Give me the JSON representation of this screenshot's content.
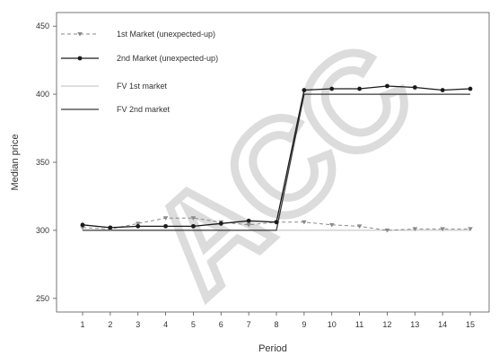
{
  "chart_data": {
    "type": "line",
    "title": "",
    "xlabel": "Period",
    "ylabel": "Median price",
    "ylim": [
      240,
      460
    ],
    "yticks": [
      250,
      300,
      350,
      400,
      450
    ],
    "categories": [
      "1",
      "2",
      "3",
      "4",
      "5",
      "6",
      "7",
      "8",
      "9",
      "10",
      "11",
      "12",
      "13",
      "14",
      "15"
    ],
    "grid": false,
    "legend_position": "top-left",
    "series": [
      {
        "name": "1st Market (unexpected-up)",
        "style": "dashed",
        "marker": "triangle-down",
        "color": "#8a8a8a",
        "values": [
          302,
          301,
          305,
          309,
          309,
          306,
          304,
          306,
          306,
          304,
          303,
          300,
          301,
          301,
          301
        ]
      },
      {
        "name": "2nd Market (unexpected-up)",
        "style": "solid",
        "marker": "circle",
        "color": "#1a1a1a",
        "values": [
          304,
          302,
          303,
          303,
          303,
          305,
          307,
          306,
          403,
          404,
          404,
          406,
          405,
          403,
          404
        ]
      },
      {
        "name": "FV 1st market",
        "style": "solid",
        "marker": "none",
        "color": "#bdbdbd",
        "values": [
          300,
          300,
          300,
          300,
          300,
          300,
          300,
          300,
          300,
          300,
          300,
          300,
          300,
          300,
          300
        ]
      },
      {
        "name": "FV 2nd market",
        "style": "solid",
        "marker": "none",
        "color": "#3a3a3a",
        "values": [
          300,
          300,
          300,
          300,
          300,
          300,
          300,
          300,
          400,
          400,
          400,
          400,
          400,
          400,
          400
        ]
      }
    ]
  },
  "watermark_text": "ACC"
}
